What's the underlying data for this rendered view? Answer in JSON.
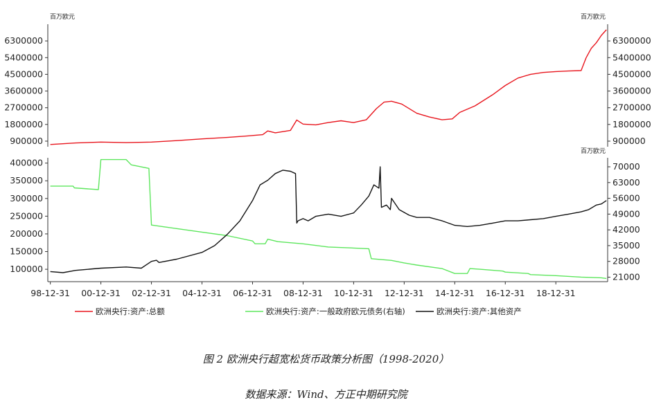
{
  "figure_title": "图 2   欧洲央行超宽松货币政策分析图（1998-2020）",
  "figure_source": "数据来源：Wind、方正中期研究院",
  "chart_data": [
    {
      "type": "line",
      "unit_left": "百万欧元",
      "unit_right": "百万欧元",
      "ylim": [
        600000,
        7200000
      ],
      "left_ticks": [
        "900000",
        "1800000",
        "2700000",
        "3600000",
        "4500000",
        "5400000",
        "6300000"
      ],
      "right_ticks": [
        "900000",
        "1800000",
        "2700000",
        "3600000",
        "4500000",
        "5400000",
        "6300000"
      ],
      "series": [
        {
          "name": "欧洲央行:资产:总额",
          "color": "#e8141c",
          "axis": "left",
          "x": [
            1999.0,
            2000.0,
            2001.0,
            2002.0,
            2003.0,
            2004.0,
            2005.0,
            2006.0,
            2006.8,
            2007.4,
            2007.6,
            2007.9,
            2008.5,
            2008.75,
            2009.0,
            2009.5,
            2010.0,
            2010.5,
            2011.0,
            2011.5,
            2011.9,
            2012.2,
            2012.5,
            2012.9,
            2013.5,
            2014.0,
            2014.5,
            2014.9,
            2015.2,
            2015.8,
            2016.5,
            2017.0,
            2017.5,
            2018.0,
            2018.5,
            2019.0,
            2019.5,
            2020.0,
            2020.2,
            2020.4,
            2020.6,
            2020.8,
            2021.0
          ],
          "values": [
            720000,
            800000,
            850000,
            820000,
            850000,
            930000,
            1020000,
            1100000,
            1180000,
            1250000,
            1450000,
            1350000,
            1480000,
            2040000,
            1820000,
            1780000,
            1900000,
            2000000,
            1900000,
            2050000,
            2650000,
            3000000,
            3050000,
            2900000,
            2400000,
            2200000,
            2050000,
            2100000,
            2450000,
            2800000,
            3400000,
            3900000,
            4300000,
            4500000,
            4600000,
            4650000,
            4680000,
            4700000,
            5400000,
            5900000,
            6200000,
            6600000,
            6900000
          ]
        }
      ]
    },
    {
      "type": "line",
      "unit_right": "百万欧元",
      "ylim_left": [
        65000,
        415000
      ],
      "ylim_right": [
        19000,
        74000
      ],
      "left_ticks": [
        "100000",
        "150000",
        "200000",
        "250000",
        "300000",
        "350000",
        "400000"
      ],
      "right_ticks": [
        "21000",
        "28000",
        "35000",
        "42000",
        "49000",
        "56000",
        "63000",
        "70000"
      ],
      "x_ticks": [
        "98-12-31",
        "00-12-31",
        "02-12-31",
        "04-12-31",
        "06-12-31",
        "08-12-31",
        "10-12-31",
        "12-12-31",
        "14-12-31",
        "16-12-31",
        "18-12-31"
      ],
      "legend": [
        "欧洲央行:资产:总额",
        "欧洲央行:资产:一般政府欧元债务(右轴)",
        "欧洲央行:资产:其他资产"
      ],
      "series": [
        {
          "name": "欧洲央行:资产:一般政府欧元债务(右轴)",
          "color": "#5ce65c",
          "axis": "left",
          "x": [
            1999.0,
            1999.9,
            1999.95,
            2000.9,
            2001.0,
            2002.0,
            2002.2,
            2002.9,
            2003.0,
            2004.0,
            2005.0,
            2006.0,
            2007.0,
            2007.1,
            2007.5,
            2007.6,
            2008.0,
            2009.0,
            2010.0,
            2011.0,
            2011.6,
            2011.7,
            2012.5,
            2013.0,
            2013.5,
            2014.5,
            2015.0,
            2015.5,
            2015.6,
            2016.0,
            2016.9,
            2017.0,
            2017.9,
            2018.0,
            2019.0,
            2020.0,
            2020.8,
            2021.0
          ],
          "values": [
            335000,
            335000,
            330000,
            325000,
            410000,
            410000,
            395000,
            385000,
            225000,
            215000,
            205000,
            195000,
            180000,
            172000,
            172000,
            185000,
            178000,
            172000,
            163000,
            160000,
            158000,
            130000,
            125000,
            118000,
            112000,
            102000,
            88000,
            88000,
            102000,
            100000,
            95000,
            92000,
            88000,
            85000,
            82000,
            78000,
            76000,
            74000
          ]
        },
        {
          "name": "欧洲央行:资产:其他资产",
          "color": "#111111",
          "axis": "right",
          "x": [
            1999.0,
            1999.5,
            2000.0,
            2001.0,
            2002.0,
            2002.6,
            2002.8,
            2003.0,
            2003.2,
            2003.3,
            2004.0,
            2005.0,
            2005.5,
            2006.0,
            2006.5,
            2007.0,
            2007.3,
            2007.6,
            2007.9,
            2008.2,
            2008.5,
            2008.7,
            2008.75,
            2008.8,
            2009.0,
            2009.2,
            2009.5,
            2010.0,
            2010.5,
            2011.0,
            2011.3,
            2011.6,
            2011.8,
            2012.0,
            2012.05,
            2012.1,
            2012.3,
            2012.45,
            2012.5,
            2012.8,
            2013.2,
            2013.5,
            2014.0,
            2014.5,
            2015.0,
            2015.5,
            2016.0,
            2016.5,
            2017.0,
            2017.5,
            2018.0,
            2018.5,
            2019.0,
            2019.5,
            2020.0,
            2020.3,
            2020.6,
            2020.8,
            2021.0
          ],
          "values": [
            23500,
            23000,
            24000,
            25000,
            25500,
            25000,
            26500,
            28000,
            28500,
            27500,
            29000,
            32000,
            35000,
            40000,
            46000,
            55000,
            62000,
            64000,
            67000,
            68500,
            68000,
            67000,
            45000,
            46000,
            47000,
            46000,
            48000,
            49000,
            48000,
            49500,
            53000,
            57000,
            62000,
            60500,
            70000,
            52000,
            53000,
            51000,
            56000,
            51000,
            48500,
            47500,
            47500,
            46000,
            44000,
            43500,
            44000,
            45000,
            46000,
            46000,
            46500,
            47000,
            48000,
            49000,
            50000,
            51000,
            53000,
            53500,
            55000
          ]
        }
      ]
    }
  ]
}
